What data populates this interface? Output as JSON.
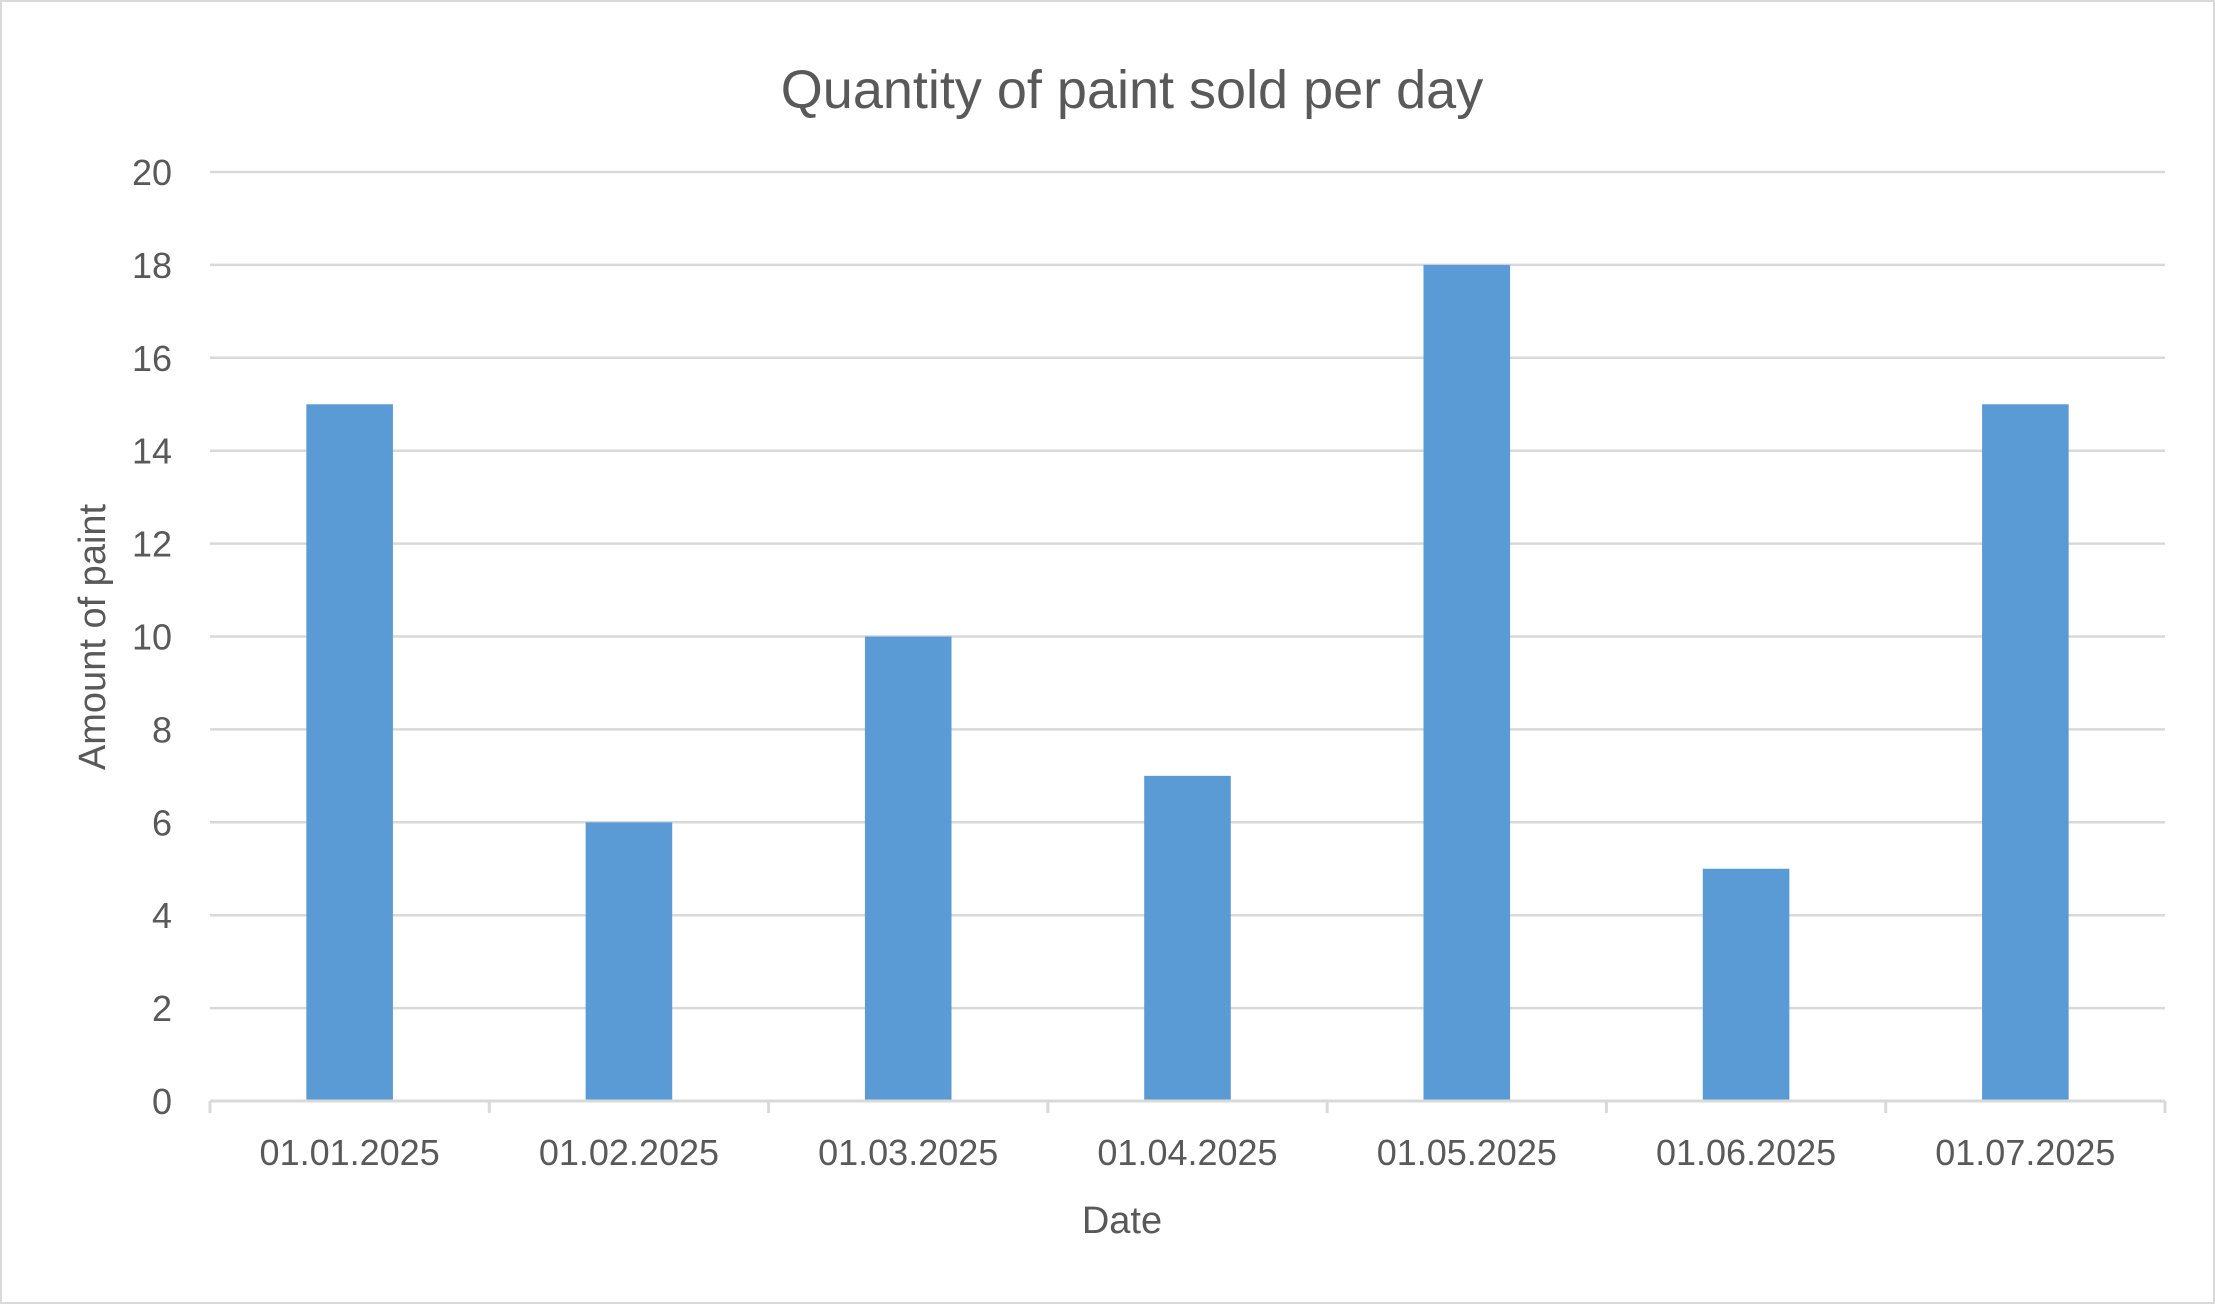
{
  "chart_data": {
    "type": "bar",
    "title": "Quantity of paint sold per day",
    "xlabel": "Date",
    "ylabel": "Amount of paint",
    "categories": [
      "01.01.2025",
      "01.02.2025",
      "01.03.2025",
      "01.04.2025",
      "01.05.2025",
      "01.06.2025",
      "01.07.2025"
    ],
    "values": [
      15,
      6,
      10,
      7,
      18,
      5,
      15
    ],
    "ylim": [
      0,
      20
    ],
    "yticks": [
      0,
      2,
      4,
      6,
      8,
      10,
      12,
      14,
      16,
      18,
      20
    ],
    "grid": true,
    "legend": "none",
    "colors": {
      "bar": "#5b9bd5",
      "grid": "#d9d9d9",
      "axis": "#d9d9d9",
      "text": "#595959",
      "border": "#d9d9d9"
    }
  }
}
